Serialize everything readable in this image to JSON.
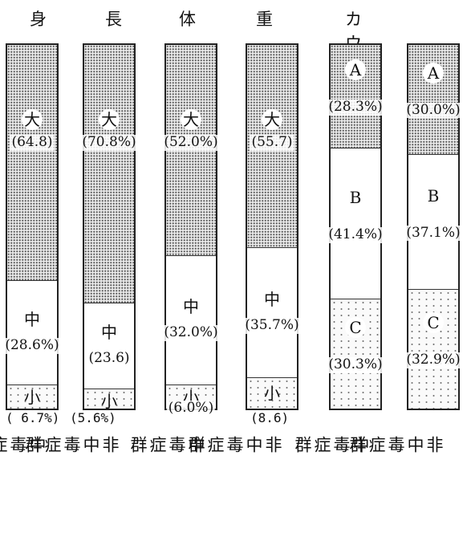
{
  "headers": [
    "身",
    "長",
    "体",
    "重",
    "カウブ指数"
  ],
  "chart_data": {
    "type": "stacked-bar",
    "unit": "%",
    "groups": [
      "中毒症群",
      "非中毒症群",
      "中毒症群",
      "非中毒症群",
      "中毒症群",
      "非中毒症群"
    ],
    "panels": [
      {
        "measure": "身長",
        "categories": [
          "大",
          "中",
          "小"
        ],
        "bars": [
          {
            "group": "中毒症群",
            "values": [
              64.8,
              28.6,
              6.7
            ],
            "labels": [
              "(64.8)",
              "(28.6%)",
              "6.7%)"
            ]
          },
          {
            "group": "非中毒症群",
            "values": [
              70.8,
              23.6,
              5.6
            ],
            "labels": [
              "(70.8%)",
              "(23.6)",
              "5.6%)"
            ]
          }
        ]
      },
      {
        "measure": "体重",
        "categories": [
          "大",
          "中",
          "小"
        ],
        "bars": [
          {
            "group": "中毒症群",
            "values": [
              52.0,
              32.0,
              6.0
            ],
            "labels": [
              "(52.0%)",
              "(32.0%)",
              "(6.0%)"
            ]
          },
          {
            "group": "非中毒症群",
            "values": [
              55.7,
              35.7,
              8.6
            ],
            "labels": [
              "(55.7)",
              "(35.7%)",
              "(8.6)"
            ]
          }
        ]
      },
      {
        "measure": "カウブ指数",
        "categories": [
          "A",
          "B",
          "C"
        ],
        "bars": [
          {
            "group": "中毒症群",
            "values": [
              28.3,
              41.4,
              30.3
            ],
            "labels": [
              "(28.3%)",
              "(41.4%)",
              "(30.3%)"
            ]
          },
          {
            "group": "非中毒症群",
            "values": [
              30.0,
              37.1,
              32.9
            ],
            "labels": [
              "(30.0%)",
              "(37.1%)",
              "(32.9%)"
            ]
          }
        ]
      }
    ]
  },
  "colors": {
    "border": "#222222",
    "dense": "#e9e9e9",
    "sparse": "#fafafa"
  }
}
